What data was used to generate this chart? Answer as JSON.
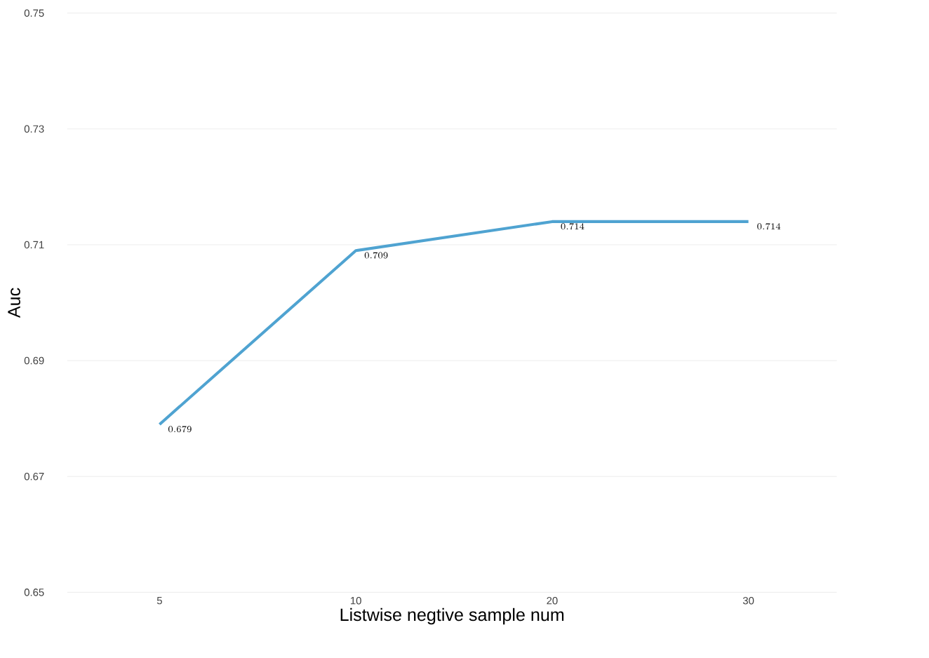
{
  "chart_data": {
    "type": "line",
    "xlabel": "Listwise negtive sample num",
    "ylabel": "Auc",
    "categories": [
      "5",
      "10",
      "20",
      "30"
    ],
    "values": [
      0.679,
      0.709,
      0.714,
      0.714
    ],
    "color": "#4fa3d1",
    "data_labels": true,
    "grid": "y",
    "marker": "none",
    "line_style": "solid",
    "ylim": [
      0.65,
      0.75
    ],
    "yticks": [
      {
        "value": 0.65,
        "label": "0.65"
      },
      {
        "value": 0.67,
        "label": "0.67"
      },
      {
        "value": 0.69,
        "label": "0.69"
      },
      {
        "value": 0.71,
        "label": "0.71"
      },
      {
        "value": 0.73,
        "label": "0.73"
      },
      {
        "value": 0.75,
        "label": "0.75"
      }
    ]
  }
}
